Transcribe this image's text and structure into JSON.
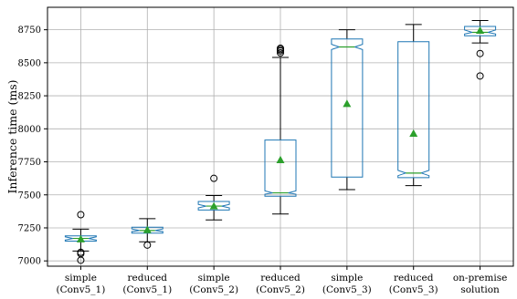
{
  "chart_data": {
    "type": "boxplot",
    "ylabel": "Inference time (ms)",
    "xlabel": "",
    "ylim": [
      6960,
      8920
    ],
    "yticks": [
      7000,
      7250,
      7500,
      7750,
      8000,
      8250,
      8500,
      8750
    ],
    "grid": true,
    "notched": true,
    "show_means": true,
    "colors": {
      "box": "#1f77b4",
      "median": "#2ca02c",
      "mean": "#2ca02c",
      "whisker": "#000000",
      "flier": "#000000",
      "grid": "#b0b0b0"
    },
    "categories": [
      [
        "simple",
        "(Conv5_1)"
      ],
      [
        "reduced",
        "(Conv5_1)"
      ],
      [
        "simple",
        "(Conv5_2)"
      ],
      [
        "reduced",
        "(Conv5_2)"
      ],
      [
        "simple",
        "(Conv5_3)"
      ],
      [
        "reduced",
        "(Conv5_3)"
      ],
      [
        "on-premise",
        "solution"
      ]
    ],
    "boxes": [
      {
        "whisker_low": 7075,
        "q1": 7150,
        "median": 7170,
        "q3": 7190,
        "whisker_high": 7240,
        "mean": 7165,
        "notch": [
          7158,
          7182
        ],
        "fliers": [
          7350,
          7065,
          7055,
          7005
        ]
      },
      {
        "whisker_low": 7145,
        "q1": 7210,
        "median": 7230,
        "q3": 7255,
        "whisker_high": 7320,
        "mean": 7235,
        "notch": [
          7222,
          7242
        ],
        "fliers": [
          7120
        ]
      },
      {
        "whisker_low": 7310,
        "q1": 7385,
        "median": 7415,
        "q3": 7450,
        "whisker_high": 7495,
        "mean": 7415,
        "notch": [
          7402,
          7428
        ],
        "fliers": [
          7625
        ]
      },
      {
        "whisker_low": 7355,
        "q1": 7490,
        "median": 7515,
        "q3": 7915,
        "whisker_high": 8540,
        "mean": 7765,
        "notch": [
          7505,
          7530
        ],
        "fliers": [
          8575,
          8590,
          8600,
          8610
        ]
      },
      {
        "whisker_low": 7540,
        "q1": 7635,
        "median": 8620,
        "q3": 8680,
        "whisker_high": 8750,
        "mean": 8190,
        "notch": [
          8600,
          8640
        ],
        "fliers": []
      },
      {
        "whisker_low": 7570,
        "q1": 7630,
        "median": 7665,
        "q3": 8660,
        "whisker_high": 8790,
        "mean": 7965,
        "notch": [
          7645,
          7685
        ],
        "fliers": []
      },
      {
        "whisker_low": 8650,
        "q1": 8705,
        "median": 8730,
        "q3": 8775,
        "whisker_high": 8820,
        "mean": 8745,
        "notch": [
          8718,
          8748
        ],
        "fliers": [
          8570,
          8400
        ]
      }
    ]
  }
}
